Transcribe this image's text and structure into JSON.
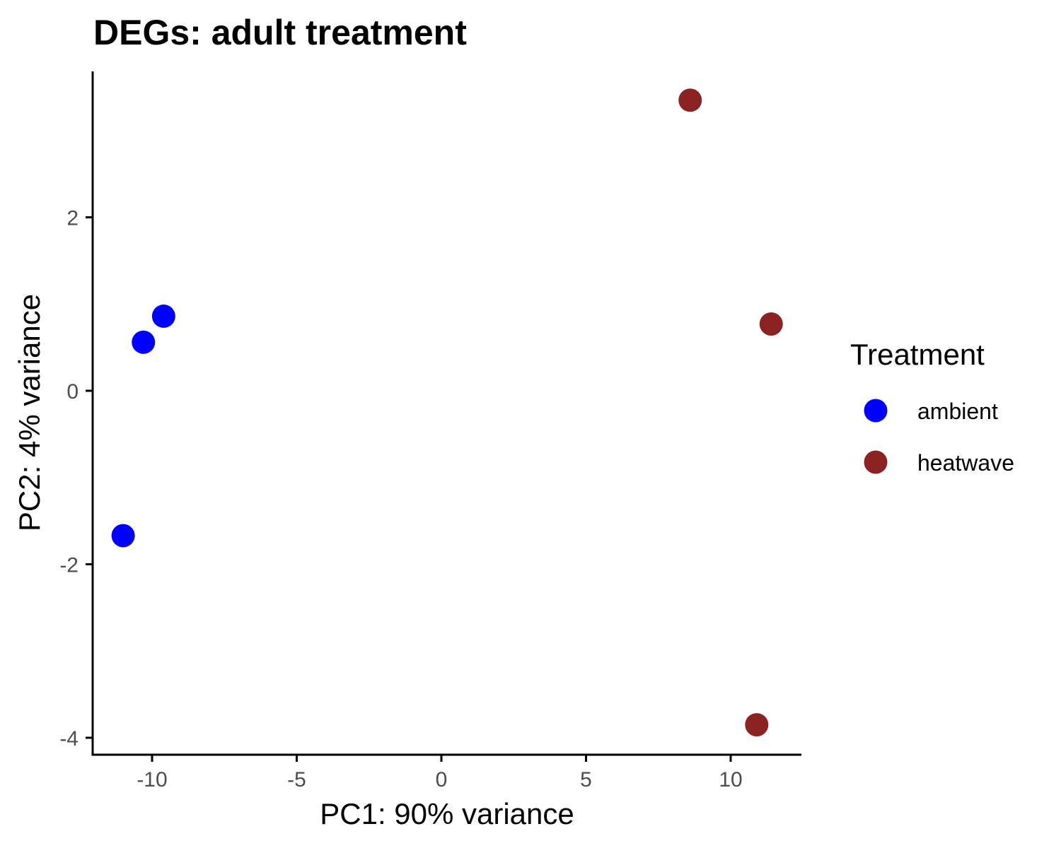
{
  "chart_data": {
    "type": "scatter",
    "title": "DEGs: adult treatment",
    "xlabel": "PC1: 90% variance",
    "ylabel": "PC2: 4% variance",
    "xlim": [
      -12.2,
      12.4
    ],
    "ylim": [
      -4.1,
      3.7
    ],
    "x_ticks": [
      -10,
      -5,
      0,
      5,
      10
    ],
    "x_tick_labels": [
      "-10",
      "-5",
      "0",
      "5",
      "10"
    ],
    "y_ticks": [
      2,
      0,
      -2,
      -4
    ],
    "y_tick_labels": [
      "2",
      "0",
      "-2",
      "-4"
    ],
    "grid": false,
    "legend": {
      "title": "Treatment",
      "placement": "right",
      "entries": [
        {
          "label": "ambient",
          "color": "#0000FF"
        },
        {
          "label": "heatwave",
          "color": "#8B2323"
        }
      ]
    },
    "series": [
      {
        "name": "ambient",
        "color": "#0000FF",
        "points": [
          {
            "x": -9.6,
            "y": 0.86
          },
          {
            "x": -10.3,
            "y": 0.56
          },
          {
            "x": -11.0,
            "y": -1.67
          }
        ]
      },
      {
        "name": "heatwave",
        "color": "#8B2323",
        "points": [
          {
            "x": 8.6,
            "y": 3.35
          },
          {
            "x": 11.4,
            "y": 0.77
          },
          {
            "x": 10.9,
            "y": -3.85
          }
        ]
      }
    ]
  }
}
